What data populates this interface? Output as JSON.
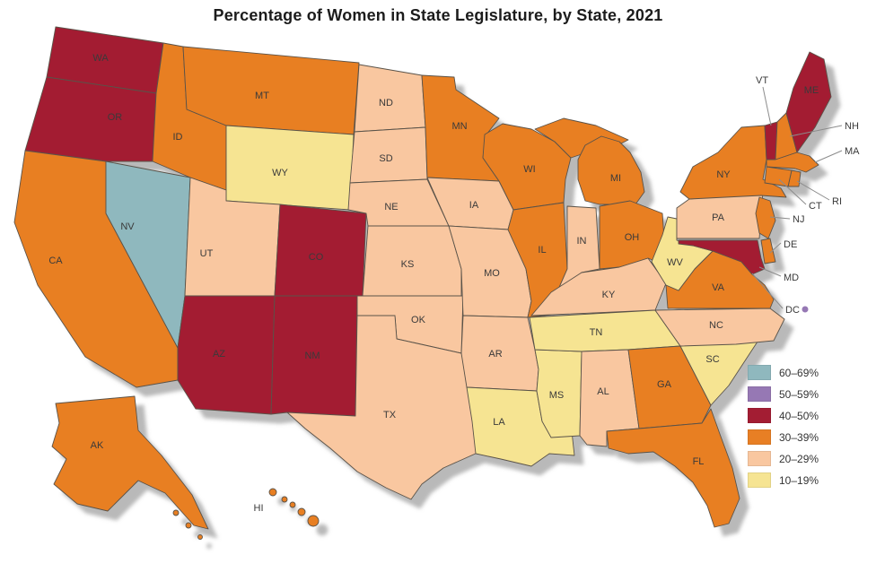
{
  "title": "Percentage of Women in State Legislature, by State, 2021",
  "legend": {
    "items": [
      {
        "label": "60–69%",
        "band": "60-69",
        "color": "#8FB8BE"
      },
      {
        "label": "50–59%",
        "band": "50-59",
        "color": "#9678B4"
      },
      {
        "label": "40–50%",
        "band": "40-50",
        "color": "#A31D33"
      },
      {
        "label": "30–39%",
        "band": "30-39",
        "color": "#E87F24"
      },
      {
        "label": "20–29%",
        "band": "20-29",
        "color": "#F9C7A0"
      },
      {
        "label": "10–19%",
        "band": "10-19",
        "color": "#F6E492"
      }
    ]
  },
  "map": {
    "states": [
      {
        "abbr": "WA",
        "band": "40-50"
      },
      {
        "abbr": "OR",
        "band": "40-50"
      },
      {
        "abbr": "CA",
        "band": "30-39"
      },
      {
        "abbr": "NV",
        "band": "60-69"
      },
      {
        "abbr": "ID",
        "band": "30-39"
      },
      {
        "abbr": "MT",
        "band": "30-39"
      },
      {
        "abbr": "WY",
        "band": "10-19"
      },
      {
        "abbr": "UT",
        "band": "20-29"
      },
      {
        "abbr": "CO",
        "band": "40-50"
      },
      {
        "abbr": "AZ",
        "band": "40-50"
      },
      {
        "abbr": "NM",
        "band": "40-50"
      },
      {
        "abbr": "ND",
        "band": "20-29"
      },
      {
        "abbr": "SD",
        "band": "20-29"
      },
      {
        "abbr": "NE",
        "band": "20-29"
      },
      {
        "abbr": "KS",
        "band": "20-29"
      },
      {
        "abbr": "OK",
        "band": "20-29"
      },
      {
        "abbr": "TX",
        "band": "20-29"
      },
      {
        "abbr": "MN",
        "band": "30-39"
      },
      {
        "abbr": "IA",
        "band": "20-29"
      },
      {
        "abbr": "MO",
        "band": "20-29"
      },
      {
        "abbr": "AR",
        "band": "20-29"
      },
      {
        "abbr": "LA",
        "band": "10-19"
      },
      {
        "abbr": "WI",
        "band": "30-39"
      },
      {
        "abbr": "IL",
        "band": "30-39"
      },
      {
        "abbr": "MS",
        "band": "10-19"
      },
      {
        "abbr": "MI",
        "band": "30-39"
      },
      {
        "abbr": "IN",
        "band": "20-29"
      },
      {
        "abbr": "OH",
        "band": "30-39"
      },
      {
        "abbr": "KY",
        "band": "20-29"
      },
      {
        "abbr": "TN",
        "band": "10-19"
      },
      {
        "abbr": "AL",
        "band": "20-29"
      },
      {
        "abbr": "GA",
        "band": "30-39"
      },
      {
        "abbr": "FL",
        "band": "30-39"
      },
      {
        "abbr": "SC",
        "band": "10-19"
      },
      {
        "abbr": "NC",
        "band": "20-29"
      },
      {
        "abbr": "VA",
        "band": "30-39"
      },
      {
        "abbr": "WV",
        "band": "10-19"
      },
      {
        "abbr": "PA",
        "band": "20-29"
      },
      {
        "abbr": "NY",
        "band": "30-39"
      },
      {
        "abbr": "VT",
        "band": "40-50"
      },
      {
        "abbr": "NH",
        "band": "30-39"
      },
      {
        "abbr": "ME",
        "band": "40-50"
      },
      {
        "abbr": "MA",
        "band": "30-39"
      },
      {
        "abbr": "RI",
        "band": "30-39"
      },
      {
        "abbr": "CT",
        "band": "30-39"
      },
      {
        "abbr": "NJ",
        "band": "30-39"
      },
      {
        "abbr": "DE",
        "band": "30-39"
      },
      {
        "abbr": "MD",
        "band": "40-50"
      },
      {
        "abbr": "DC",
        "band": "50-59"
      },
      {
        "abbr": "AK",
        "band": "30-39"
      },
      {
        "abbr": "HI",
        "band": "30-39"
      }
    ]
  }
}
